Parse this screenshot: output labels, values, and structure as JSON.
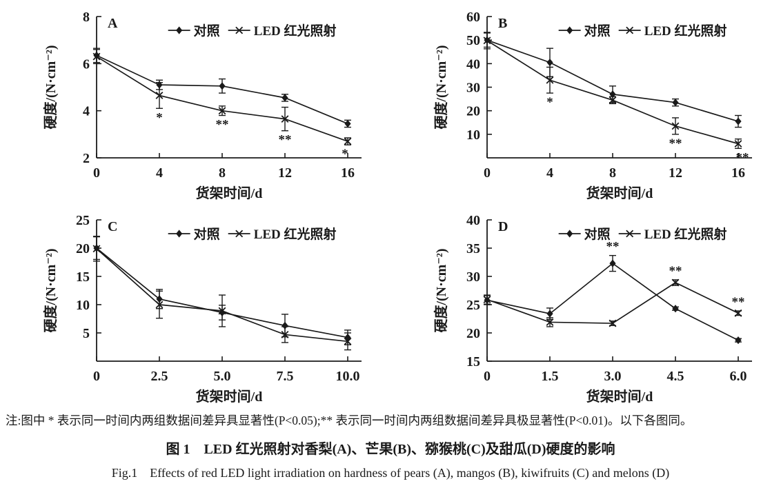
{
  "figure": {
    "note": "注:图中 * 表示同一时间内两组数据间差异具显著性(P<0.05);** 表示同一时间内两组数据间差异具极显著性(P<0.01)。以下各图同。",
    "title_zh": "图 1　LED 红光照射对香梨(A)、芒果(B)、猕猴桃(C)及甜瓜(D)硬度的影响",
    "title_en": "Fig.1　Effects of red LED light irradiation on hardness of pears (A), mangos (B), kiwifruits (C) and melons (D)"
  },
  "colors": {
    "ink": "#1a1a1a",
    "background": "#ffffff"
  },
  "chart_data": [
    {
      "type": "line",
      "panel": "A",
      "xlabel": "货架时间/d",
      "ylabel": "硬度/(N·cm⁻²)",
      "x": [
        0,
        4,
        8,
        12,
        16
      ],
      "xtick_labels": [
        "0",
        "4",
        "8",
        "12",
        "16"
      ],
      "ylim": [
        2,
        8
      ],
      "yticks": [
        2,
        4,
        6,
        8
      ],
      "grid": false,
      "legend_position": "top-inside",
      "series": [
        {
          "name": "对照",
          "marker": "diamond",
          "values": [
            6.35,
            5.1,
            5.05,
            4.55,
            3.45
          ],
          "errors": [
            0.3,
            0.2,
            0.3,
            0.15,
            0.15
          ]
        },
        {
          "name": "LED 红光照射",
          "marker": "x",
          "values": [
            6.3,
            4.65,
            4.0,
            3.65,
            2.7
          ],
          "errors": [
            0.3,
            0.55,
            0.2,
            0.5,
            0.15
          ]
        }
      ],
      "annotations": [
        {
          "x": 4,
          "series": 1,
          "text": "*",
          "position": "below"
        },
        {
          "x": 8,
          "series": 1,
          "text": "**",
          "position": "below"
        },
        {
          "x": 12,
          "series": 1,
          "text": "**",
          "position": "below"
        },
        {
          "x": 16,
          "series": 1,
          "text": "*",
          "position": "below",
          "dx": -4
        }
      ]
    },
    {
      "type": "line",
      "panel": "B",
      "xlabel": "货架时间/d",
      "ylabel": "硬度/(N·cm⁻²)",
      "x": [
        0,
        4,
        8,
        12,
        16
      ],
      "xtick_labels": [
        "0",
        "4",
        "8",
        "12",
        "16"
      ],
      "ylim": [
        0,
        60
      ],
      "yticks": [
        10,
        20,
        30,
        40,
        50,
        60
      ],
      "grid": false,
      "legend_position": "top-inside",
      "series": [
        {
          "name": "对照",
          "marker": "diamond",
          "values": [
            50,
            40.5,
            27,
            23.5,
            15.5
          ],
          "errors": [
            3,
            6,
            3.5,
            1.5,
            2.5
          ]
        },
        {
          "name": "LED 红光照射",
          "marker": "x",
          "values": [
            49.8,
            33,
            24.5,
            13.5,
            6
          ],
          "errors": [
            3.5,
            5.5,
            1.5,
            3.5,
            2
          ]
        }
      ],
      "annotations": [
        {
          "x": 4,
          "series": 1,
          "text": "*",
          "position": "below"
        },
        {
          "x": 12,
          "series": 1,
          "text": "**",
          "position": "below"
        },
        {
          "x": 16,
          "series": 1,
          "text": "**",
          "position": "below",
          "dx": 6
        }
      ]
    },
    {
      "type": "line",
      "panel": "C",
      "xlabel": "货架时间/d",
      "ylabel": "硬度/(N·cm⁻²)",
      "x": [
        0,
        2.5,
        5,
        7.5,
        10
      ],
      "xtick_labels": [
        "0",
        "2.5",
        "5.0",
        "7.5",
        "10.0"
      ],
      "ylim": [
        0,
        25
      ],
      "yticks": [
        5,
        10,
        15,
        20,
        25
      ],
      "grid": false,
      "legend_position": "top-inside",
      "series": [
        {
          "name": "对照",
          "marker": "diamond",
          "values": [
            20,
            11,
            8.6,
            6.3,
            4.2
          ],
          "errors": [
            2,
            1.7,
            1.3,
            2,
            1.3
          ]
        },
        {
          "name": "LED 红光照射",
          "marker": "x",
          "values": [
            19.9,
            10,
            8.9,
            4.7,
            3.5
          ],
          "errors": [
            2.2,
            2.4,
            2.8,
            1.4,
            1.5
          ]
        }
      ],
      "annotations": []
    },
    {
      "type": "line",
      "panel": "D",
      "xlabel": "货架时间/d",
      "ylabel": "硬度/(N·cm⁻²)",
      "x": [
        0,
        1.5,
        3,
        4.5,
        6
      ],
      "xtick_labels": [
        "0",
        "1.5",
        "3.0",
        "4.5",
        "6.0"
      ],
      "ylim": [
        15,
        40
      ],
      "yticks": [
        15,
        20,
        25,
        30,
        35,
        40
      ],
      "grid": false,
      "legend_position": "top-inside",
      "series": [
        {
          "name": "对照",
          "marker": "diamond",
          "values": [
            25.8,
            23.4,
            32.3,
            24.3,
            18.7
          ],
          "errors": [
            0.8,
            1.0,
            1.4,
            0.3,
            0.3
          ]
        },
        {
          "name": "LED 红光照射",
          "marker": "x",
          "values": [
            25.9,
            21.9,
            21.7,
            28.9,
            23.5
          ],
          "errors": [
            0.8,
            0.8,
            0.4,
            0.5,
            0.4
          ]
        }
      ],
      "annotations": [
        {
          "x": 3,
          "series": 0,
          "text": "**",
          "position": "above"
        },
        {
          "x": 4.5,
          "series": 1,
          "text": "**",
          "position": "above"
        },
        {
          "x": 6,
          "series": 1,
          "text": "**",
          "position": "above"
        }
      ]
    }
  ]
}
